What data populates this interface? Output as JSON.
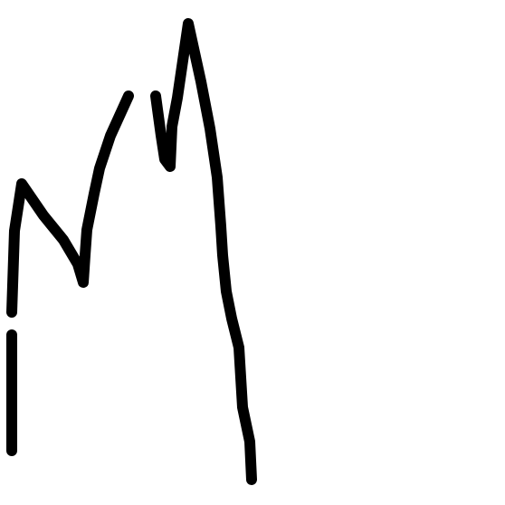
{
  "drawing": {
    "background_color": "#ffffff",
    "stroke_color": "#000000",
    "description_visible_text": ""
  }
}
